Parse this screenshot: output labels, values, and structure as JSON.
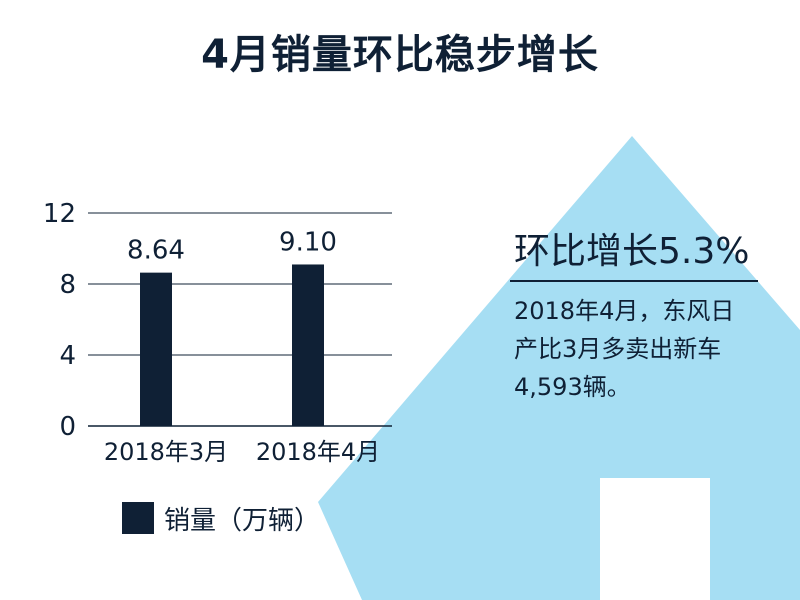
{
  "title": "4月销量环比稳步增长",
  "highlight": "环比增长5.3%",
  "description": "2018年4月，东风日产比3月多卖出新车4,593辆。",
  "colors": {
    "bar": "#0f2035",
    "arrow": "#a6def3",
    "grid": "#0f2035",
    "text": "#0f2035"
  },
  "chart_data": {
    "type": "bar",
    "categories": [
      "2018年3月",
      "2018年4月"
    ],
    "series": [
      {
        "name": "销量（万辆）",
        "values": [
          8.64,
          9.1
        ]
      }
    ],
    "value_labels": [
      "8.64",
      "9.10"
    ],
    "yticks": [
      0,
      4,
      8,
      12
    ],
    "ylim": [
      0,
      12
    ],
    "grid": true,
    "legend": "bottom"
  }
}
